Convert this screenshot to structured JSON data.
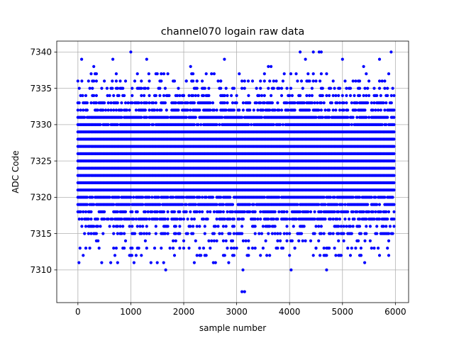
{
  "chart_data": {
    "type": "scatter",
    "title": "channel070 logain raw data",
    "xlabel": "sample number",
    "ylabel": "ADC Code",
    "xlim": [
      -400,
      6250
    ],
    "ylim": [
      7305.5,
      7341.5
    ],
    "x_ticks": [
      0,
      1000,
      2000,
      3000,
      4000,
      5000,
      6000
    ],
    "y_ticks": [
      7310,
      7315,
      7320,
      7325,
      7330,
      7335,
      7340
    ],
    "grid": true,
    "marker_color": "#0000ff",
    "series": [
      {
        "n_samples": 6000,
        "x_step": 25,
        "dense_band": [
          7312,
          7337
        ],
        "points": [
          [
            0,
            7336
          ],
          [
            20,
            7311
          ],
          [
            40,
            7313
          ],
          [
            70,
            7339
          ],
          [
            90,
            7334
          ],
          [
            150,
            7334
          ],
          [
            200,
            7336
          ],
          [
            300,
            7338
          ],
          [
            350,
            7337
          ],
          [
            380,
            7314
          ],
          [
            450,
            7311
          ],
          [
            500,
            7336
          ],
          [
            560,
            7334
          ],
          [
            620,
            7311
          ],
          [
            660,
            7339
          ],
          [
            700,
            7312
          ],
          [
            750,
            7311
          ],
          [
            800,
            7336
          ],
          [
            850,
            7334
          ],
          [
            1000,
            7340
          ],
          [
            1020,
            7312
          ],
          [
            1060,
            7311
          ],
          [
            1100,
            7312
          ],
          [
            1150,
            7313
          ],
          [
            1200,
            7336
          ],
          [
            1250,
            7334
          ],
          [
            1300,
            7339
          ],
          [
            1340,
            7337
          ],
          [
            1380,
            7311
          ],
          [
            1450,
            7313
          ],
          [
            1500,
            7311
          ],
          [
            1550,
            7336
          ],
          [
            1620,
            7311
          ],
          [
            1660,
            7310
          ],
          [
            1700,
            7337
          ],
          [
            1740,
            7313
          ],
          [
            1800,
            7336
          ],
          [
            1880,
            7334
          ],
          [
            2000,
            7334
          ],
          [
            2050,
            7336
          ],
          [
            2100,
            7313
          ],
          [
            2130,
            7338
          ],
          [
            2200,
            7311
          ],
          [
            2250,
            7336
          ],
          [
            2300,
            7313
          ],
          [
            2350,
            7334
          ],
          [
            2400,
            7312
          ],
          [
            2500,
            7313
          ],
          [
            2560,
            7311
          ],
          [
            2600,
            7311
          ],
          [
            2650,
            7336
          ],
          [
            2700,
            7336
          ],
          [
            2770,
            7339
          ],
          [
            2850,
            7311
          ],
          [
            3000,
            7313
          ],
          [
            3100,
            7307
          ],
          [
            3120,
            7310
          ],
          [
            3150,
            7307
          ],
          [
            3200,
            7312
          ],
          [
            3220,
            7336
          ],
          [
            3300,
            7336
          ],
          [
            3350,
            7313
          ],
          [
            3400,
            7334
          ],
          [
            3450,
            7336
          ],
          [
            3500,
            7313
          ],
          [
            3570,
            7312
          ],
          [
            3600,
            7338
          ],
          [
            3650,
            7338
          ],
          [
            3700,
            7336
          ],
          [
            3750,
            7313
          ],
          [
            3850,
            7313
          ],
          [
            4000,
            7312
          ],
          [
            4030,
            7310
          ],
          [
            4100,
            7313
          ],
          [
            4150,
            7336
          ],
          [
            4200,
            7340
          ],
          [
            4300,
            7339
          ],
          [
            4380,
            7336
          ],
          [
            4450,
            7340
          ],
          [
            4500,
            7313
          ],
          [
            4560,
            7340
          ],
          [
            4600,
            7340
          ],
          [
            4650,
            7312
          ],
          [
            4700,
            7310
          ],
          [
            4750,
            7313
          ],
          [
            4850,
            7313
          ],
          [
            5000,
            7339
          ],
          [
            5100,
            7313
          ],
          [
            5150,
            7312
          ],
          [
            5200,
            7336
          ],
          [
            5250,
            7313
          ],
          [
            5300,
            7336
          ],
          [
            5350,
            7312
          ],
          [
            5400,
            7338
          ],
          [
            5420,
            7311
          ],
          [
            5450,
            7337
          ],
          [
            5500,
            7336
          ],
          [
            5600,
            7313
          ],
          [
            5700,
            7339
          ],
          [
            5800,
            7336
          ],
          [
            5850,
            7313
          ],
          [
            5920,
            7340
          ],
          [
            5950,
            7335
          ]
        ]
      }
    ]
  }
}
